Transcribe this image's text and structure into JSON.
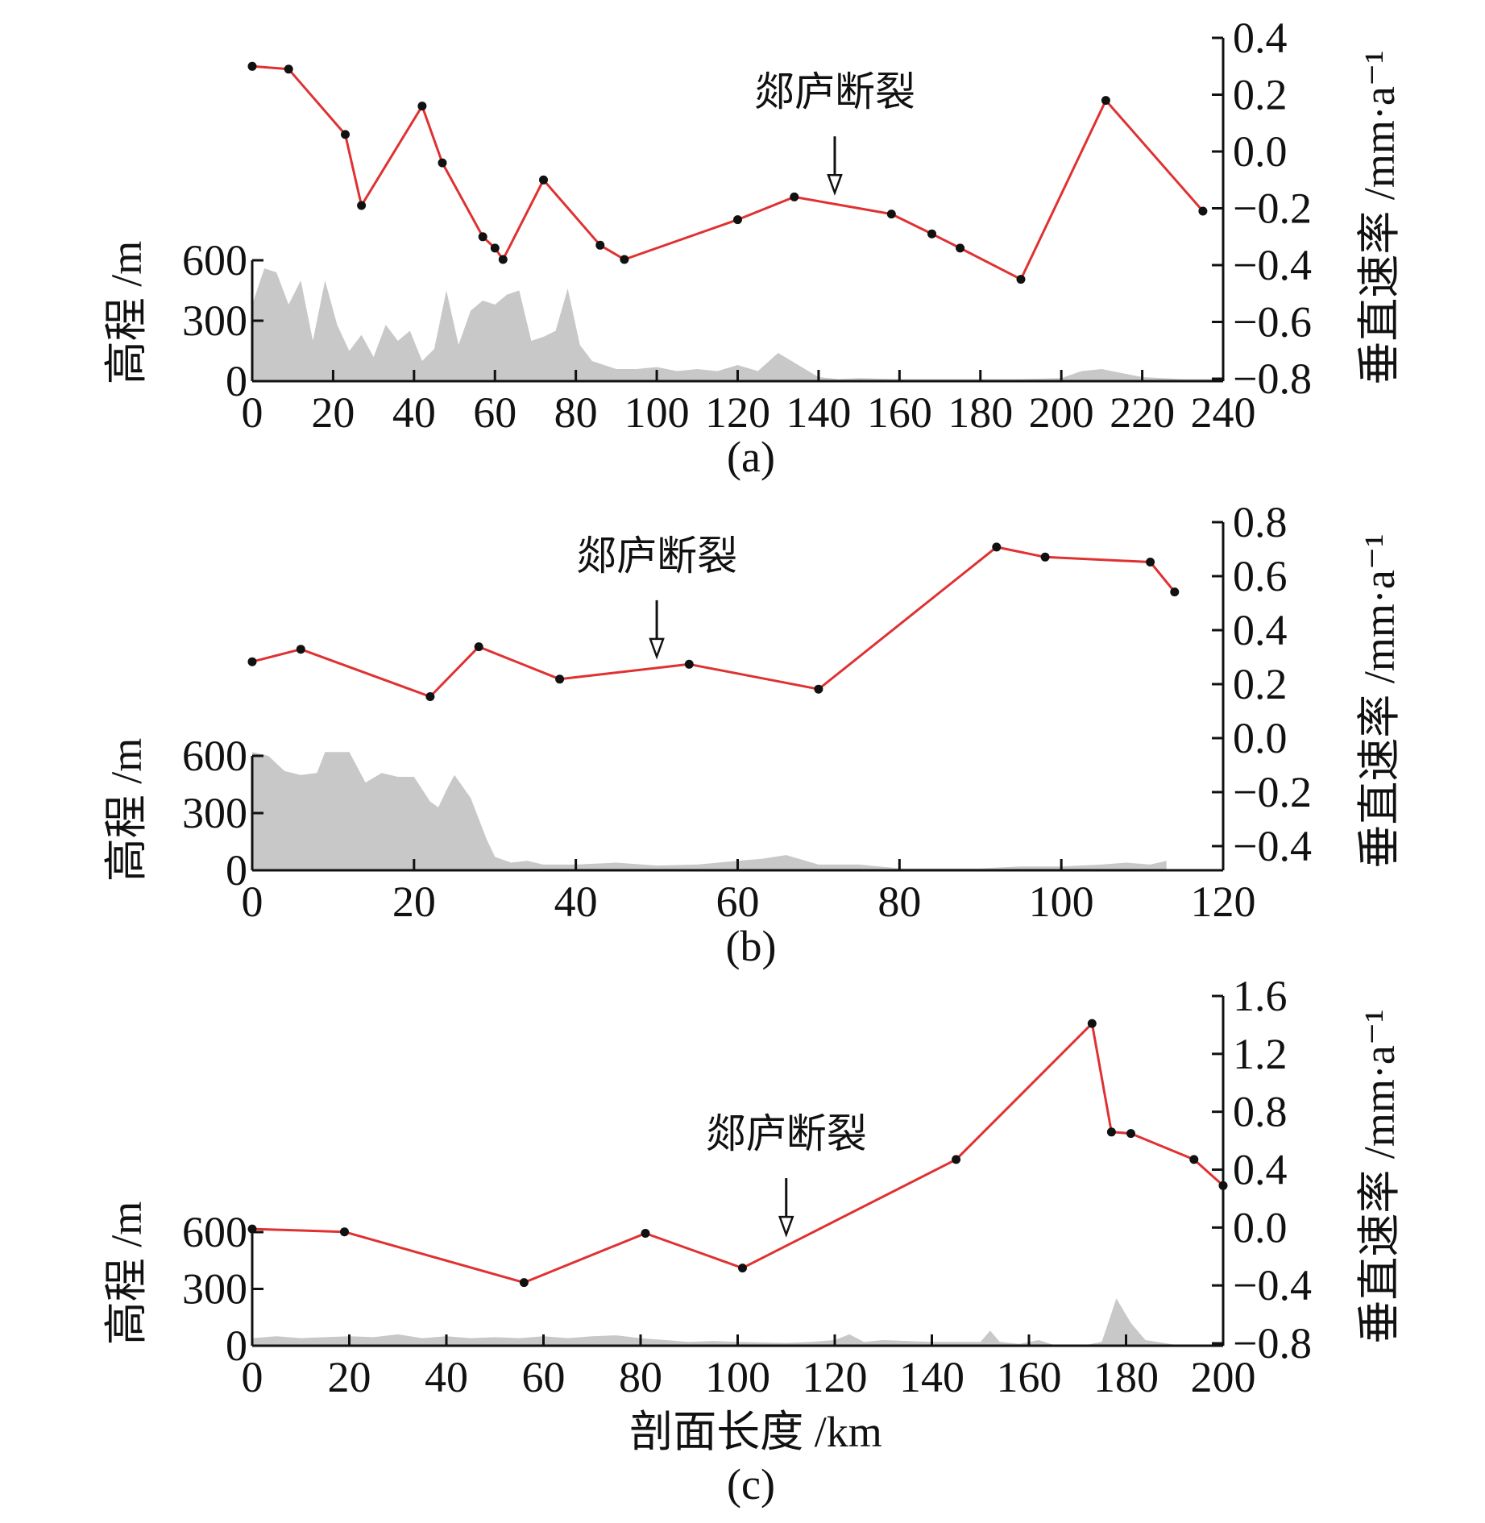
{
  "colors": {
    "velocity_line": "#e03131",
    "velocity_point": "#111111",
    "elevation_fill": "#c8c8c8",
    "axis": "#111111"
  },
  "chart_data": [
    {
      "type": "line",
      "panel_label": "(a)",
      "fault_label": "郯庐断裂",
      "fault_x": 144,
      "xlabel": "",
      "xlim": [
        0,
        240
      ],
      "xticks": [
        "0",
        "20",
        "40",
        "60",
        "80",
        "100",
        "120",
        "140",
        "160",
        "180",
        "200",
        "220",
        "240"
      ],
      "left_axis": {
        "label": "高程 /m",
        "ylim": [
          0,
          600
        ],
        "ticks": [
          "0",
          "300",
          "600"
        ]
      },
      "right_axis": {
        "label": "垂直速率 /mm·a⁻¹",
        "ylim": [
          -0.8,
          0.4
        ],
        "ticks": [
          "−0.8",
          "−0.6",
          "−0.4",
          "−0.2",
          "0.0",
          "0.2",
          "0.4"
        ]
      },
      "series": [
        {
          "axis": "right",
          "style": "line-markers",
          "x": [
            0,
            9,
            23,
            27,
            42,
            47,
            57,
            60,
            62,
            72,
            86,
            92,
            120,
            134,
            158,
            168,
            175,
            190,
            211,
            235
          ],
          "y": [
            0.3,
            0.29,
            0.06,
            -0.19,
            0.16,
            -0.04,
            -0.3,
            -0.34,
            -0.38,
            -0.1,
            -0.33,
            -0.38,
            -0.24,
            -0.16,
            -0.22,
            -0.29,
            -0.34,
            -0.45,
            0.18,
            -0.21
          ]
        },
        {
          "axis": "left",
          "style": "area",
          "x": [
            0,
            3,
            6,
            9,
            12,
            15,
            18,
            21,
            24,
            27,
            30,
            33,
            36,
            39,
            42,
            45,
            48,
            51,
            54,
            57,
            60,
            63,
            66,
            69,
            72,
            75,
            78,
            81,
            84,
            87,
            90,
            95,
            100,
            105,
            110,
            115,
            120,
            125,
            130,
            135,
            140,
            145,
            150,
            160,
            170,
            180,
            190,
            200,
            205,
            210,
            215,
            220,
            230,
            240
          ],
          "y": [
            380,
            560,
            540,
            380,
            500,
            200,
            500,
            280,
            150,
            230,
            120,
            280,
            200,
            250,
            100,
            160,
            450,
            180,
            350,
            400,
            380,
            430,
            450,
            200,
            220,
            250,
            460,
            180,
            100,
            80,
            60,
            60,
            70,
            50,
            60,
            50,
            80,
            50,
            140,
            80,
            20,
            10,
            15,
            10,
            10,
            10,
            10,
            15,
            50,
            60,
            40,
            20,
            10,
            10
          ]
        }
      ]
    },
    {
      "type": "line",
      "panel_label": "(b)",
      "fault_label": "郯庐断裂",
      "fault_x": 50,
      "xlabel": "",
      "xlim": [
        0,
        120
      ],
      "xticks": [
        "0",
        "20",
        "40",
        "60",
        "80",
        "100",
        "120"
      ],
      "left_axis": {
        "label": "高程 /m",
        "ylim": [
          0,
          600
        ],
        "ticks": [
          "0",
          "300",
          "600"
        ]
      },
      "right_axis": {
        "label": "垂直速率 /mm·a⁻¹",
        "ylim": [
          -0.5,
          0.8
        ],
        "ticks": [
          "−0.4",
          "−0.2",
          "0.0",
          "0.2",
          "0.4",
          "0.6",
          "0.8"
        ]
      },
      "series": [
        {
          "axis": "right",
          "style": "line-markers",
          "x": [
            0,
            6,
            22,
            28,
            38,
            54,
            70,
            92,
            98,
            111,
            114
          ],
          "y": [
            0.24,
            0.29,
            0.1,
            0.3,
            0.17,
            0.23,
            0.13,
            0.7,
            0.66,
            0.64,
            0.52
          ]
        },
        {
          "axis": "left",
          "style": "area",
          "x": [
            0,
            2,
            4,
            6,
            8,
            9,
            12,
            14,
            16,
            18,
            20,
            22,
            23,
            24,
            25,
            27,
            29,
            30,
            32,
            34,
            36,
            40,
            45,
            50,
            55,
            60,
            63,
            66,
            70,
            75,
            80,
            85,
            90,
            95,
            100,
            105,
            108,
            111,
            113
          ],
          "y": [
            620,
            600,
            520,
            500,
            510,
            620,
            620,
            460,
            510,
            490,
            490,
            360,
            330,
            420,
            500,
            380,
            160,
            70,
            40,
            50,
            30,
            30,
            40,
            25,
            30,
            50,
            60,
            80,
            30,
            30,
            10,
            10,
            10,
            20,
            20,
            30,
            40,
            30,
            50
          ]
        }
      ]
    },
    {
      "type": "line",
      "panel_label": "(c)",
      "fault_label": "郯庐断裂",
      "fault_x": 110,
      "xlabel": "剖面长度 /km",
      "xlim": [
        0,
        200
      ],
      "xticks": [
        "0",
        "20",
        "40",
        "60",
        "80",
        "100",
        "120",
        "140",
        "160",
        "180",
        "200"
      ],
      "left_axis": {
        "label": "高程 /m",
        "ylim": [
          0,
          600
        ],
        "ticks": [
          "0",
          "300",
          "600"
        ]
      },
      "right_axis": {
        "label": "垂直速率 /mm·a⁻¹",
        "ylim": [
          -0.8,
          1.6
        ],
        "ticks": [
          "−0.8",
          "−0.4",
          "0.0",
          "0.4",
          "0.8",
          "1.2",
          "1.6"
        ]
      },
      "series": [
        {
          "axis": "right",
          "style": "line-markers",
          "x": [
            0,
            19,
            56,
            81,
            101,
            145,
            173,
            177,
            181,
            194,
            200
          ],
          "y": [
            -0.01,
            -0.03,
            -0.38,
            -0.04,
            -0.28,
            0.47,
            1.41,
            0.66,
            0.65,
            0.47,
            0.29
          ]
        },
        {
          "axis": "left",
          "style": "area",
          "x": [
            0,
            5,
            10,
            15,
            20,
            25,
            30,
            35,
            40,
            45,
            50,
            55,
            60,
            65,
            70,
            75,
            80,
            85,
            90,
            95,
            100,
            110,
            115,
            120,
            123,
            126,
            130,
            140,
            150,
            152,
            154,
            158,
            162,
            165,
            172,
            175,
            178,
            181,
            184,
            190,
            195,
            200
          ],
          "y": [
            40,
            50,
            40,
            45,
            50,
            45,
            60,
            40,
            50,
            40,
            45,
            40,
            50,
            40,
            50,
            55,
            40,
            30,
            20,
            25,
            20,
            15,
            20,
            30,
            60,
            20,
            30,
            20,
            20,
            80,
            20,
            10,
            30,
            5,
            5,
            20,
            250,
            120,
            30,
            5,
            5,
            5
          ]
        }
      ]
    }
  ]
}
